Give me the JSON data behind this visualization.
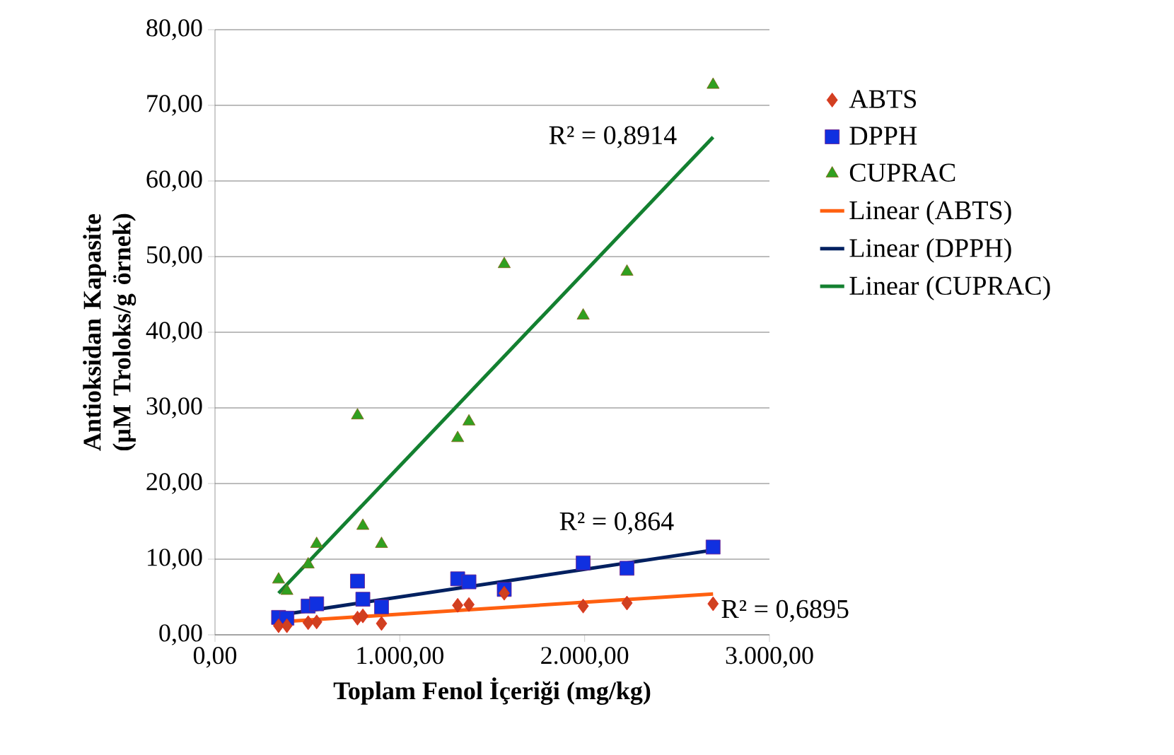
{
  "chart_data": {
    "type": "scatter",
    "xlabel": "Toplam Fenol İçeriği (mg/kg)",
    "ylabel": "Antioksidan Kapasite (µM Troloks/g örnek)",
    "xlim": [
      0,
      3000
    ],
    "ylim": [
      0,
      80
    ],
    "xticks": [
      {
        "value": 0,
        "label": "0,00"
      },
      {
        "value": 1000,
        "label": "1.000,00"
      },
      {
        "value": 2000,
        "label": "2.000,00"
      },
      {
        "value": 3000,
        "label": "3.000,00"
      }
    ],
    "yticks": [
      {
        "value": 0,
        "label": "0,00"
      },
      {
        "value": 10,
        "label": "10,00"
      },
      {
        "value": 20,
        "label": "20,00"
      },
      {
        "value": 30,
        "label": "30,00"
      },
      {
        "value": 40,
        "label": "40,00"
      },
      {
        "value": 50,
        "label": "50,00"
      },
      {
        "value": 60,
        "label": "60,00"
      },
      {
        "value": 70,
        "label": "70,00"
      },
      {
        "value": 80,
        "label": "80,00"
      }
    ],
    "grid": "y",
    "legend": "right",
    "x": [
      344,
      389,
      504,
      550,
      771,
      800,
      901,
      1313,
      1374,
      1565,
      1992,
      2229,
      2695
    ],
    "series": [
      {
        "name": "ABTS",
        "color": "#d04020",
        "marker": "diamond",
        "values": [
          1.2,
          1.2,
          1.6,
          1.7,
          2.2,
          2.5,
          1.5,
          3.9,
          4.0,
          5.5,
          3.8,
          4.2,
          4.1
        ]
      },
      {
        "name": "DPPH",
        "color": "#1030e0",
        "marker": "square",
        "values": [
          2.3,
          2.2,
          3.8,
          4.1,
          7.1,
          4.7,
          3.7,
          7.4,
          7.0,
          6.0,
          9.5,
          8.8,
          11.6
        ]
      },
      {
        "name": "CUPRAC",
        "color": "#30a020",
        "marker": "triangle",
        "values": [
          7.3,
          5.8,
          9.3,
          12.0,
          29.0,
          14.4,
          12.0,
          26.0,
          28.2,
          49.0,
          42.2,
          48.0,
          72.7
        ]
      },
      {
        "name": "Linear (ABTS)",
        "type": "line",
        "color": "#ff6010",
        "values": [
          1.7,
          null,
          null,
          null,
          null,
          null,
          null,
          null,
          null,
          null,
          null,
          null,
          5.4
        ]
      },
      {
        "name": "Linear (DPPH)",
        "type": "line",
        "color": "#002060",
        "values": [
          2.6,
          null,
          null,
          null,
          null,
          null,
          null,
          null,
          null,
          null,
          null,
          null,
          11.2
        ]
      },
      {
        "name": "Linear (CUPRAC)",
        "type": "line",
        "color": "#138030",
        "values": [
          5.5,
          null,
          null,
          null,
          null,
          null,
          null,
          null,
          null,
          null,
          null,
          null,
          65.8
        ]
      }
    ],
    "annotations": [
      "R² = 0,8914",
      "R² = 0,864",
      "R² = 0,6895"
    ]
  }
}
